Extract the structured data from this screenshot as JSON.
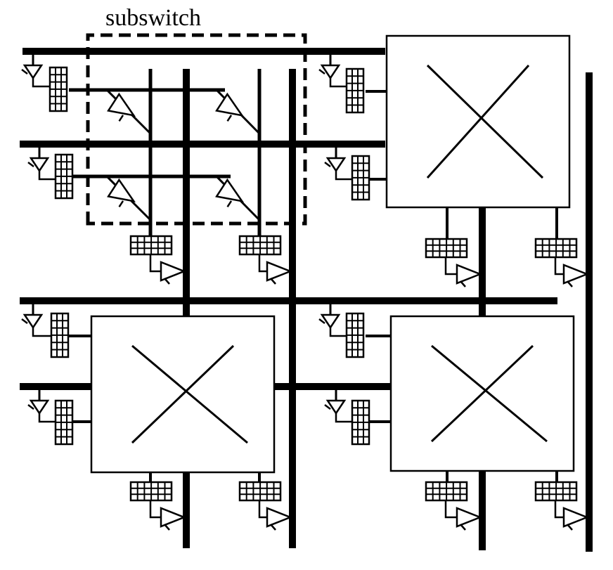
{
  "diagram": {
    "subswitch_label": "subswitch",
    "crossbar_count": 3,
    "colors": {
      "stroke": "#000000",
      "background": "#ffffff"
    }
  }
}
